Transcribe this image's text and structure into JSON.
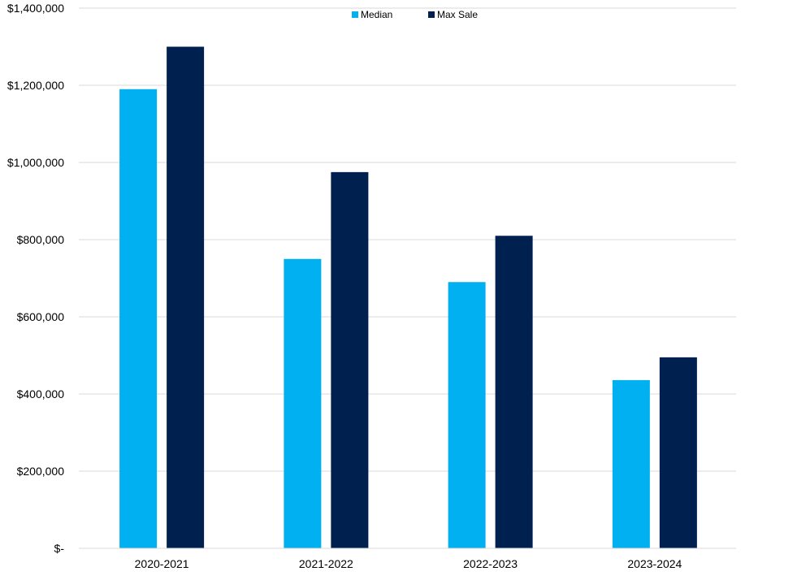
{
  "chart_data": {
    "type": "bar",
    "title": "",
    "xlabel": "",
    "ylabel": "",
    "categories": [
      "2020-2021",
      "2021-2022",
      "2022-2023",
      "2023-2024"
    ],
    "series": [
      {
        "name": "Median",
        "color": "#00B0F0",
        "values": [
          1190000,
          750000,
          690000,
          436000
        ]
      },
      {
        "name": "Max Sale",
        "color": "#002050",
        "values": [
          1300000,
          975000,
          810000,
          495000
        ]
      }
    ],
    "ylim": [
      0,
      1400000
    ],
    "yticks": [
      {
        "value": 0,
        "label": "$-"
      },
      {
        "value": 200000,
        "label": "$200,000"
      },
      {
        "value": 400000,
        "label": "$400,000"
      },
      {
        "value": 600000,
        "label": "$600,000"
      },
      {
        "value": 800000,
        "label": "$800,000"
      },
      {
        "value": 1000000,
        "label": "$1,000,000"
      },
      {
        "value": 1200000,
        "label": "$1,200,000"
      },
      {
        "value": 1400000,
        "label": "$1,400,000"
      }
    ],
    "grid": true,
    "gridline_color": "#D9D9D9",
    "legend_position": "top-center"
  }
}
